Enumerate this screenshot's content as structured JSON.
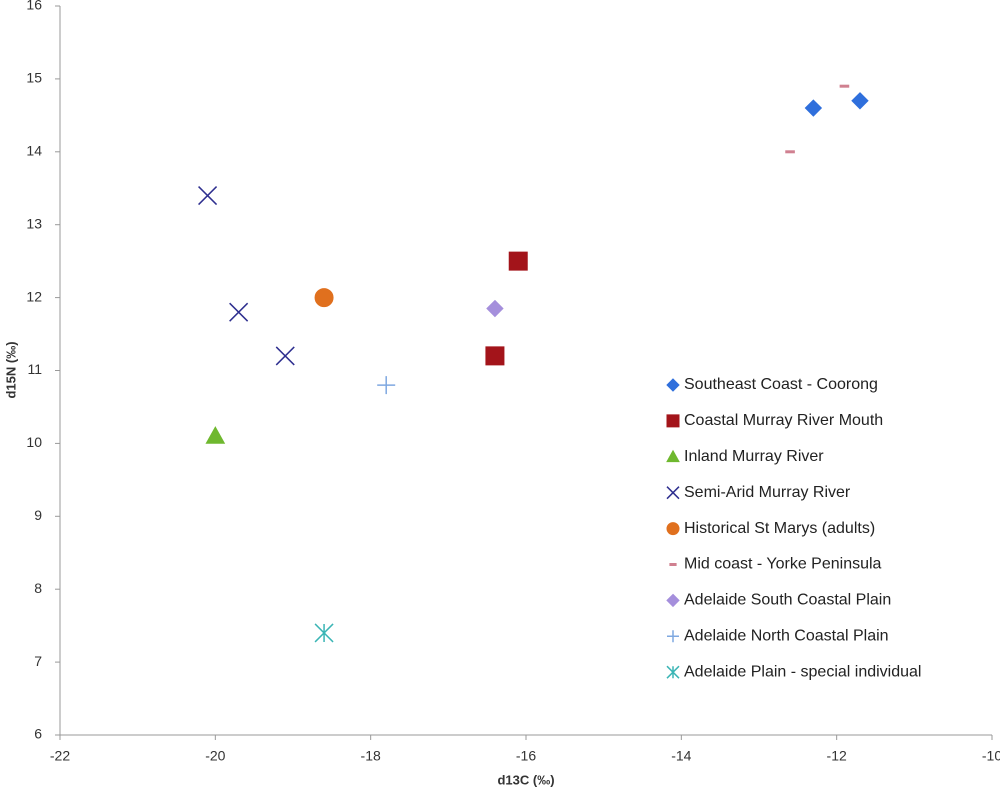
{
  "chart_data": {
    "type": "scatter",
    "x_label": "d13C (‰)",
    "y_label": "d15N (‰)",
    "xlim": [
      -22,
      -10
    ],
    "xticks": [
      -22,
      -20,
      -18,
      -16,
      -14,
      -12,
      -10
    ],
    "ylim": [
      6,
      16
    ],
    "yticks": [
      6,
      7,
      8,
      9,
      10,
      11,
      12,
      13,
      14,
      15,
      16
    ],
    "grid": false,
    "legend": "right",
    "series": [
      {
        "name": "Southeast Coast - Coorong",
        "color": "#2f6fdc",
        "marker": "diamond",
        "x": [
          -12.3,
          -11.7
        ],
        "y": [
          14.6,
          14.7
        ]
      },
      {
        "name": "Coastal Murray River Mouth",
        "color": "#a3141a",
        "marker": "square",
        "x": [
          -16.1,
          -16.4
        ],
        "y": [
          12.5,
          11.2
        ]
      },
      {
        "name": "Inland Murray River",
        "color": "#6fb82e",
        "marker": "triangle",
        "x": [
          -20.0
        ],
        "y": [
          10.1
        ]
      },
      {
        "name": "Semi-Arid Murray River",
        "color": "#2e2f8f",
        "marker": "x",
        "x": [
          -20.1,
          -19.7,
          -19.1
        ],
        "y": [
          13.4,
          11.8,
          11.2
        ]
      },
      {
        "name": "Historical St Marys (adults)",
        "color": "#e0701e",
        "marker": "circle",
        "x": [
          -18.6
        ],
        "y": [
          12.0
        ]
      },
      {
        "name": "Mid coast - Yorke Peninsula",
        "color": "#d08090",
        "marker": "dash",
        "x": [
          -12.6,
          -11.9
        ],
        "y": [
          14.0,
          14.9
        ]
      },
      {
        "name": "Adelaide South Coastal Plain",
        "color": "#a58fdc",
        "marker": "diamond",
        "x": [
          -16.4
        ],
        "y": [
          11.85
        ]
      },
      {
        "name": "Adelaide North Coastal Plain",
        "color": "#7fa8e0",
        "marker": "plus",
        "x": [
          -17.8
        ],
        "y": [
          10.8
        ]
      },
      {
        "name": "Adelaide Plain - special individual",
        "color": "#3bb5b5",
        "marker": "asterisk",
        "x": [
          -18.6
        ],
        "y": [
          7.4
        ]
      }
    ]
  }
}
